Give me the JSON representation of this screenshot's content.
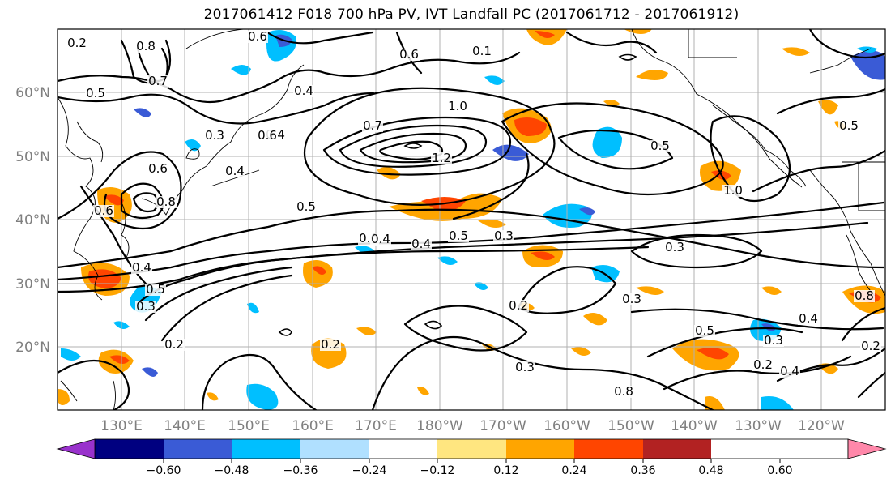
{
  "title": "2017061412 F018 700 hPa PV, IVT Landfall PC (2017061712 - 2017061912)",
  "lat_labels": [
    "60°N",
    "50°N",
    "40°N",
    "30°N",
    "20°N"
  ],
  "lon_labels": [
    "130°E",
    "140°E",
    "150°E",
    "160°E",
    "170°E",
    "180°W",
    "170°W",
    "160°W",
    "150°W",
    "140°W",
    "130°W",
    "120°W"
  ],
  "colorbar": {
    "ticks": [
      "−0.60",
      "−0.48",
      "−0.36",
      "−0.24",
      "−0.12",
      "0.12",
      "0.24",
      "0.36",
      "0.48",
      "0.60"
    ],
    "colors": [
      "#9932cc",
      "#000080",
      "#3a5bd6",
      "#00bfff",
      "#b0e0ff",
      "#ffffff",
      "#ffe680",
      "#ffa500",
      "#ff4500",
      "#b22222",
      "#ff88aa"
    ]
  },
  "contour_labels": [
    "0.2",
    "0.6",
    "0.8",
    "0.7",
    "0.5",
    "0.4",
    "0.3",
    "0.4",
    "0.6",
    "0.5",
    "0.6",
    "0.4",
    "0.7",
    "1.0",
    "1.2",
    "0.5",
    "0.4",
    "0.6",
    "0.5",
    "0.3",
    "0.8",
    "0.5",
    "1.0",
    "0.3",
    "0.4",
    "0.3",
    "0.2",
    "0.8",
    "0.3",
    "0.2",
    "0.3",
    "0.2",
    "0.5",
    "0.3",
    "0.4",
    "0.2",
    "0.4",
    "0.2",
    "0.6",
    "0.4",
    "0.5",
    "0.8",
    "0.6",
    "0.1"
  ]
}
